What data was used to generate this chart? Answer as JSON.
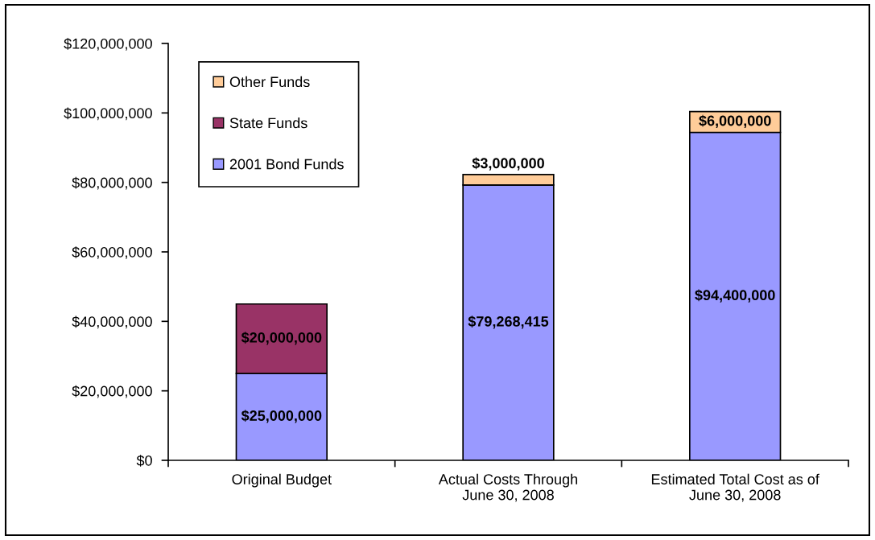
{
  "chart_data": {
    "type": "bar",
    "stacked": true,
    "categories": [
      "Original Budget",
      "Actual Costs Through\nJune 30, 2008",
      "Estimated Total Cost as of\nJune 30, 2008"
    ],
    "series": [
      {
        "name": "2001 Bond Funds",
        "color": "#9999ff",
        "values": [
          25000000,
          79268415,
          94400000
        ],
        "value_labels": [
          "$25,000,000",
          "$79,268,415",
          "$94,400,000"
        ]
      },
      {
        "name": "State Funds",
        "color": "#993366",
        "values": [
          20000000,
          null,
          null
        ],
        "value_labels": [
          "$20,000,000",
          null,
          null
        ]
      },
      {
        "name": "Other Funds",
        "color": "#ffcc99",
        "values": [
          null,
          3000000,
          6000000
        ],
        "value_labels": [
          null,
          "$3,000,000",
          "$6,000,000"
        ]
      }
    ],
    "ylim": [
      0,
      120000000
    ],
    "yticks": [
      {
        "value": 0,
        "label": "$0"
      },
      {
        "value": 20000000,
        "label": "$20,000,000"
      },
      {
        "value": 40000000,
        "label": "$40,000,000"
      },
      {
        "value": 60000000,
        "label": "$60,000,000"
      },
      {
        "value": 80000000,
        "label": "$80,000,000"
      },
      {
        "value": 100000000,
        "label": "$100,000,000"
      },
      {
        "value": 120000000,
        "label": "$120,000,000"
      }
    ],
    "legend": "top left",
    "grid": false
  }
}
